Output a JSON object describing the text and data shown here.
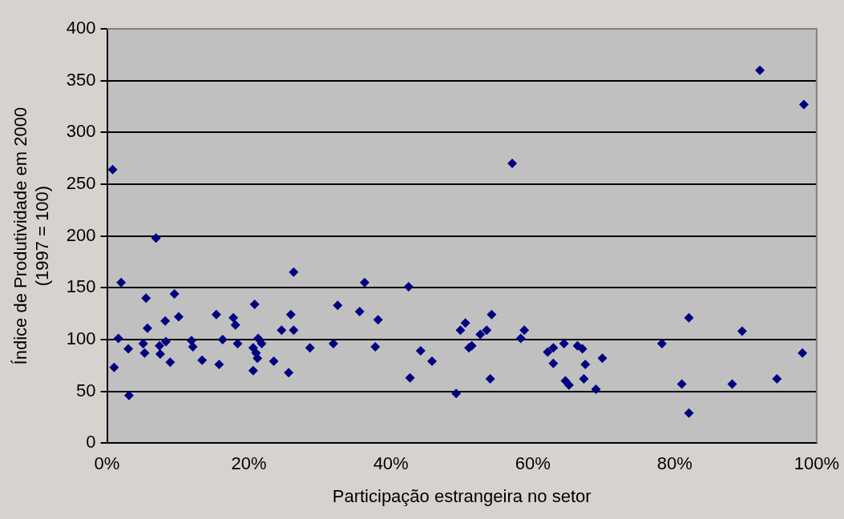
{
  "chart_data": {
    "type": "scatter",
    "xlabel": "Participação estrangeira no setor",
    "ylabel": "Índice de Produtividade em 2000\n(1997 = 100)",
    "x": [
      0.8,
      1.0,
      2.0,
      1.6,
      3.0,
      3.1,
      6.9,
      5.5,
      9.5,
      20.8,
      26.3,
      32.5,
      36.3,
      35.6,
      15.4,
      17.8,
      18.1,
      10.1,
      8.2,
      5.7,
      25.9,
      24.6,
      26.3,
      5.1,
      5.3,
      7.4,
      8.3,
      7.5,
      8.9,
      11.9,
      12.1,
      13.4,
      15.8,
      16.3,
      18.4,
      20.6,
      21.3,
      21.8,
      21.0,
      21.2,
      20.6,
      23.5,
      25.6,
      28.6,
      31.9,
      42.5,
      38.2,
      37.8,
      44.2,
      45.8,
      42.7,
      49.2,
      50.5,
      49.8,
      51.4,
      51.0,
      52.6,
      53.5,
      54.2,
      54.0,
      58.8,
      58.3,
      62.1,
      62.9,
      62.9,
      64.4,
      66.3,
      67.0,
      67.4,
      64.6,
      65.1,
      67.2,
      69.8,
      68.9,
      78.2,
      82.0,
      81.0,
      82.0,
      89.5,
      88.1,
      94.4,
      98.0,
      92.0,
      98.2,
      57.1
    ],
    "values": [
      264,
      73,
      155,
      101,
      91,
      46,
      198,
      140,
      144,
      134,
      165,
      133,
      155,
      127,
      124,
      121,
      114,
      122,
      118,
      111,
      124,
      109,
      109,
      96,
      87,
      94,
      98,
      86,
      78,
      99,
      93,
      80,
      76,
      100,
      96,
      92,
      101,
      96,
      87,
      82,
      70,
      79,
      68,
      92,
      96,
      151,
      119,
      93,
      89,
      79,
      63,
      48,
      116,
      109,
      94,
      92,
      105,
      109,
      124,
      62,
      109,
      101,
      88,
      92,
      77,
      96,
      94,
      91,
      76,
      60,
      56,
      62,
      82,
      52,
      96,
      121,
      57,
      29,
      108,
      57,
      62,
      87,
      360,
      327,
      270
    ],
    "color": "#000080",
    "marker": "diamond",
    "grid": "y",
    "xlim": [
      0,
      100
    ],
    "xticks": [
      {
        "value": 0,
        "label": "0%"
      },
      {
        "value": 20,
        "label": "20%"
      },
      {
        "value": 40,
        "label": "40%"
      },
      {
        "value": 60,
        "label": "60%"
      },
      {
        "value": 80,
        "label": "80%"
      },
      {
        "value": 100,
        "label": "100%"
      }
    ],
    "ylim": [
      0,
      400
    ],
    "yticks": [
      0,
      50,
      100,
      150,
      200,
      250,
      300,
      350,
      400
    ]
  }
}
